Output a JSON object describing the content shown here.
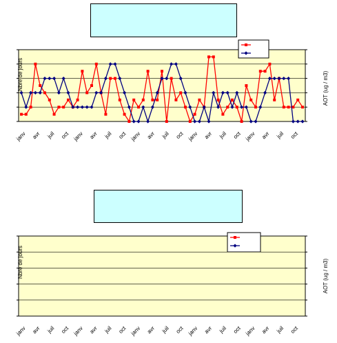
{
  "chart_data": [
    {
      "type": "line",
      "title": "",
      "ylabel_left": "Nbre de jours",
      "ylabel_right": "AOT (ug / m3)",
      "tick_labels": [
        "janv",
        "avr",
        "juil",
        "oct",
        "janv",
        "avr",
        "juil",
        "oct",
        "janv",
        "avr",
        "juil",
        "oct",
        "janv",
        "avr",
        "juil",
        "oct",
        "janv",
        "avr",
        "juil",
        "oct"
      ],
      "legend_position": "top-right",
      "grid": true,
      "background": "#ffffcc",
      "series": [
        {
          "name": "",
          "axis": "left",
          "color": "#ff0000",
          "marker": "square",
          "values": [
            1,
            1,
            2,
            8,
            5,
            4,
            3,
            1,
            2,
            2,
            3,
            2,
            3,
            7,
            4,
            5,
            8,
            4,
            1,
            6,
            6,
            3,
            1,
            0,
            3,
            2,
            3,
            7,
            3,
            3,
            7,
            0,
            6,
            3,
            4,
            2,
            0,
            1,
            3,
            2,
            9,
            9,
            3,
            1,
            2,
            3,
            2,
            0,
            5,
            3,
            2,
            7,
            7,
            8,
            3,
            6,
            2,
            2,
            2,
            3,
            2
          ]
        },
        {
          "name": "",
          "axis": "right",
          "color": "#000080",
          "marker": "diamond",
          "values": [
            1,
            0,
            1,
            1,
            1,
            2,
            2,
            2,
            1,
            2,
            1,
            0,
            0,
            0,
            0,
            0,
            1,
            1,
            2,
            3,
            3,
            2,
            1,
            0,
            -1,
            -1,
            0,
            -1,
            0,
            1,
            2,
            2,
            3,
            3,
            2,
            1,
            0,
            -1,
            -1,
            0,
            -1,
            1,
            0,
            1,
            1,
            0,
            1,
            0,
            0,
            -1,
            -1,
            0,
            1,
            2,
            2,
            2,
            2,
            2,
            -1,
            -1,
            -1
          ]
        }
      ],
      "note": "values approximate"
    },
    {
      "type": "line",
      "title": "",
      "ylabel_left": "Nbre de jours",
      "ylabel_right": "AOT (ug / m3)",
      "tick_labels": [
        "janv",
        "avr",
        "juil",
        "oct",
        "janv",
        "avr",
        "juil",
        "oct",
        "janv",
        "avr",
        "juil",
        "oct",
        "janv",
        "avr",
        "juil",
        "oct",
        "janv",
        "avr",
        "juil",
        "oct"
      ],
      "legend_position": "top-right",
      "grid": true,
      "background": "#ffffcc",
      "series": [
        {
          "name": "",
          "axis": "left",
          "color": "#ff0000",
          "marker": "square",
          "values": []
        },
        {
          "name": "",
          "axis": "right",
          "color": "#000080",
          "marker": "diamond",
          "values": []
        }
      ]
    }
  ]
}
